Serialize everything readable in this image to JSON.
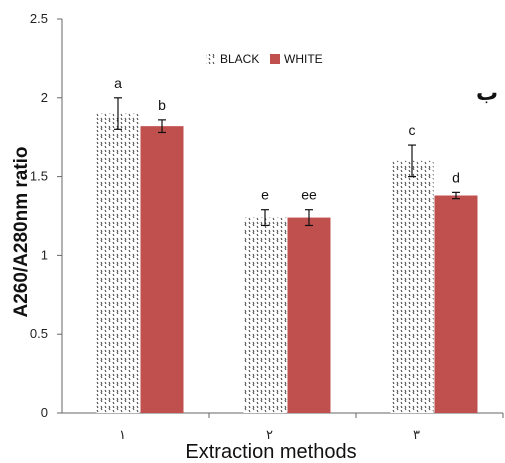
{
  "chart_data": {
    "type": "bar",
    "categories": [
      "١",
      "٢",
      "٣"
    ],
    "series": [
      {
        "name": "BLACK",
        "values": [
          1.9,
          1.24,
          1.6
        ],
        "errors": [
          0.1,
          0.05,
          0.1
        ],
        "labels": [
          "a",
          "e",
          "c"
        ],
        "pattern": "dotted"
      },
      {
        "name": "WHITE",
        "values": [
          1.82,
          1.24,
          1.38
        ],
        "errors": [
          0.04,
          0.05,
          0.02
        ],
        "labels": [
          "b",
          "ee",
          "d"
        ],
        "color": "#c0504d"
      }
    ],
    "xlabel": "Extraction methods",
    "ylabel": "A260/A280nm ratio",
    "ylim": [
      0,
      2.5
    ],
    "yticks": [
      "0",
      "0.5",
      "1",
      "1.5",
      "2",
      "2.5"
    ],
    "panel_letter": "ب",
    "legend_position": "top-center",
    "grid": false
  }
}
